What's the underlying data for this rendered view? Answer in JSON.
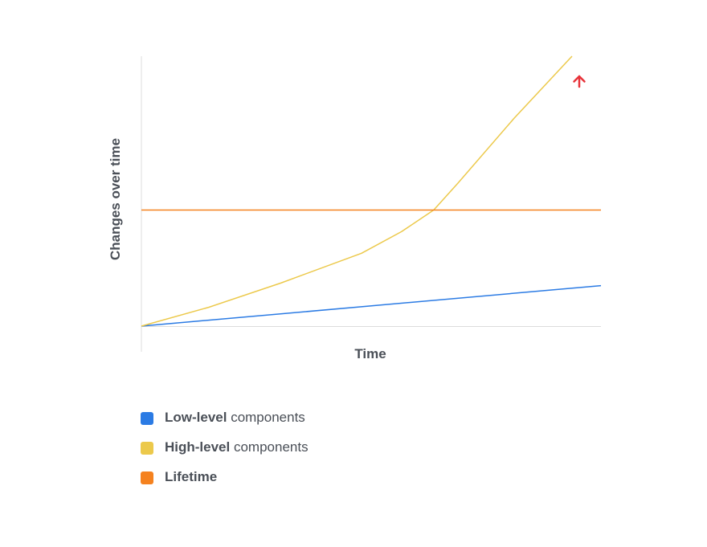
{
  "chart_data": {
    "type": "line",
    "xlabel": "Time",
    "ylabel": "Changes over time",
    "xlim": [
      0,
      100
    ],
    "ylim": [
      0,
      100
    ],
    "series": [
      {
        "name": "Low-level components",
        "color": "#2b7be4",
        "x": [
          0,
          100
        ],
        "values": [
          0,
          15
        ]
      },
      {
        "name": "High-level components",
        "color": "#ecc94b",
        "x": [
          0,
          14.7,
          30.4,
          47.9,
          56.6,
          63.6,
          68.9,
          81.1,
          93.7
        ],
        "values": [
          0,
          7,
          16,
          27,
          35,
          43,
          53,
          77,
          100
        ]
      },
      {
        "name": "Lifetime",
        "color": "#f5821f",
        "x": [
          0,
          100
        ],
        "values": [
          43,
          43
        ]
      }
    ]
  }
}
